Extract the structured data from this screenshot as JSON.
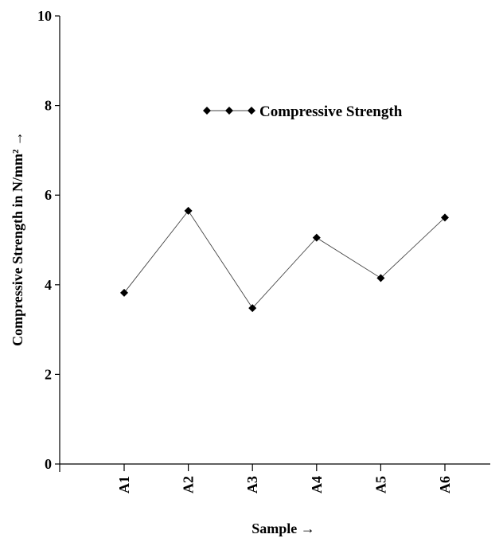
{
  "chart_data": {
    "type": "line",
    "title": "",
    "xlabel": "Sample →",
    "ylabel": "Compressive Strength in N/mm² →",
    "categories": [
      "A1",
      "A2",
      "A3",
      "A4",
      "A5",
      "A6"
    ],
    "series": [
      {
        "name": "Compressive Strength",
        "values": [
          3.82,
          5.65,
          3.48,
          5.05,
          4.15,
          5.5
        ],
        "color": "#000000",
        "marker": "diamond"
      }
    ],
    "ylim": [
      0,
      10
    ],
    "yticks": [
      "0",
      "2",
      "4",
      "6",
      "8",
      "10"
    ],
    "grid": false,
    "legend": "top-center"
  }
}
